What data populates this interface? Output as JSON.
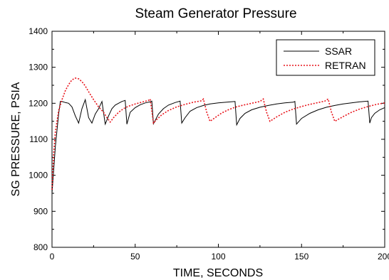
{
  "chart_data": {
    "type": "line",
    "title": "Steam Generator Pressure",
    "xlabel": "TIME, SECONDS",
    "ylabel": "SG PRESSURE, PSIA",
    "xlim": [
      0,
      200
    ],
    "ylim": [
      800,
      1400
    ],
    "xticks": [
      0,
      50,
      100,
      150,
      200
    ],
    "yticks": [
      800,
      900,
      1000,
      1100,
      1200,
      1300,
      1400
    ],
    "grid": false,
    "legend_position": "top-right",
    "series": [
      {
        "name": "SSAR",
        "color": "#000000",
        "style": "solid",
        "x": [
          0,
          2,
          4,
          5,
          6,
          8,
          10,
          12,
          14,
          16,
          18,
          20,
          22,
          24,
          26,
          28,
          30,
          32,
          34,
          36,
          38,
          40,
          42,
          44,
          45,
          47,
          50,
          53,
          56,
          59,
          60,
          61,
          64,
          67,
          70,
          74,
          77,
          78,
          80,
          83,
          87,
          91,
          95,
          100,
          105,
          110,
          111,
          113,
          116,
          120,
          125,
          130,
          135,
          140,
          145,
          146,
          147,
          150,
          155,
          160,
          165,
          170,
          175,
          180,
          185,
          190,
          191,
          192,
          194,
          197,
          200
        ],
        "values": [
          950,
          1080,
          1170,
          1205,
          1205,
          1202,
          1200,
          1190,
          1165,
          1145,
          1185,
          1210,
          1160,
          1145,
          1170,
          1185,
          1205,
          1142,
          1165,
          1185,
          1195,
          1200,
          1205,
          1208,
          1142,
          1175,
          1188,
          1196,
          1201,
          1204,
          1206,
          1143,
          1170,
          1185,
          1195,
          1202,
          1206,
          1145,
          1160,
          1178,
          1188,
          1194,
          1198,
          1201,
          1203,
          1205,
          1140,
          1158,
          1172,
          1182,
          1189,
          1194,
          1198,
          1201,
          1203,
          1205,
          1142,
          1158,
          1172,
          1182,
          1189,
          1194,
          1198,
          1201,
          1204,
          1206,
          1145,
          1160,
          1172,
          1182,
          1188
        ]
      },
      {
        "name": "RETRAN",
        "color": "#e8141b",
        "style": "dotted",
        "x": [
          0,
          1,
          2,
          4,
          6,
          8,
          10,
          12,
          14,
          16,
          18,
          20,
          22,
          25,
          28,
          31,
          33,
          35,
          37,
          40,
          43,
          46,
          50,
          54,
          58,
          59,
          61,
          63,
          66,
          70,
          75,
          80,
          85,
          90,
          91,
          93,
          95,
          98,
          102,
          106,
          110,
          115,
          120,
          125,
          127,
          129,
          131,
          135,
          140,
          145,
          150,
          155,
          160,
          164,
          166,
          168,
          170,
          175,
          180,
          185,
          190,
          195,
          200
        ],
        "values": [
          960,
          1060,
          1120,
          1180,
          1210,
          1235,
          1252,
          1265,
          1270,
          1268,
          1260,
          1248,
          1232,
          1210,
          1190,
          1175,
          1160,
          1148,
          1160,
          1175,
          1185,
          1192,
          1198,
          1203,
          1208,
          1212,
          1145,
          1155,
          1168,
          1180,
          1190,
          1197,
          1203,
          1207,
          1212,
          1175,
          1150,
          1160,
          1173,
          1182,
          1189,
          1195,
          1200,
          1205,
          1212,
          1175,
          1150,
          1162,
          1175,
          1184,
          1191,
          1197,
          1202,
          1206,
          1212,
          1175,
          1150,
          1163,
          1175,
          1184,
          1191,
          1197,
          1201
        ]
      }
    ]
  }
}
